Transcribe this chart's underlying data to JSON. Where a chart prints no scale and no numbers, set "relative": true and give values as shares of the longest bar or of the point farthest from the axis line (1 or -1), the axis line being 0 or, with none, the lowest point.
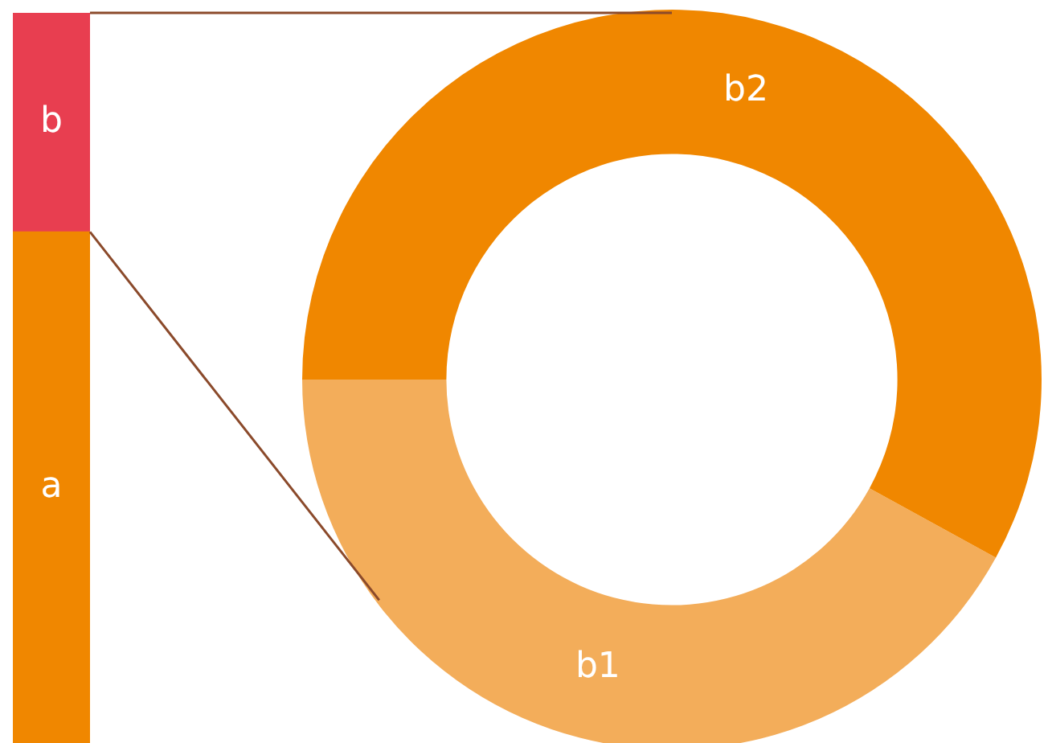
{
  "chart_data": [
    {
      "type": "bar",
      "categories": [
        null
      ],
      "stacked": true,
      "relative": true,
      "legend": false,
      "series": [
        {
          "name": "a",
          "color": "#f08700",
          "values": [
            0.7
          ]
        },
        {
          "name": "b",
          "color": "#e83e50",
          "values": [
            0.3
          ]
        }
      ]
    },
    {
      "type": "donut",
      "categories": [
        "b1",
        "b2"
      ],
      "values": [
        42,
        58
      ],
      "colors": [
        "#f3ad5a",
        "#f08700"
      ],
      "legend": false
    }
  ]
}
